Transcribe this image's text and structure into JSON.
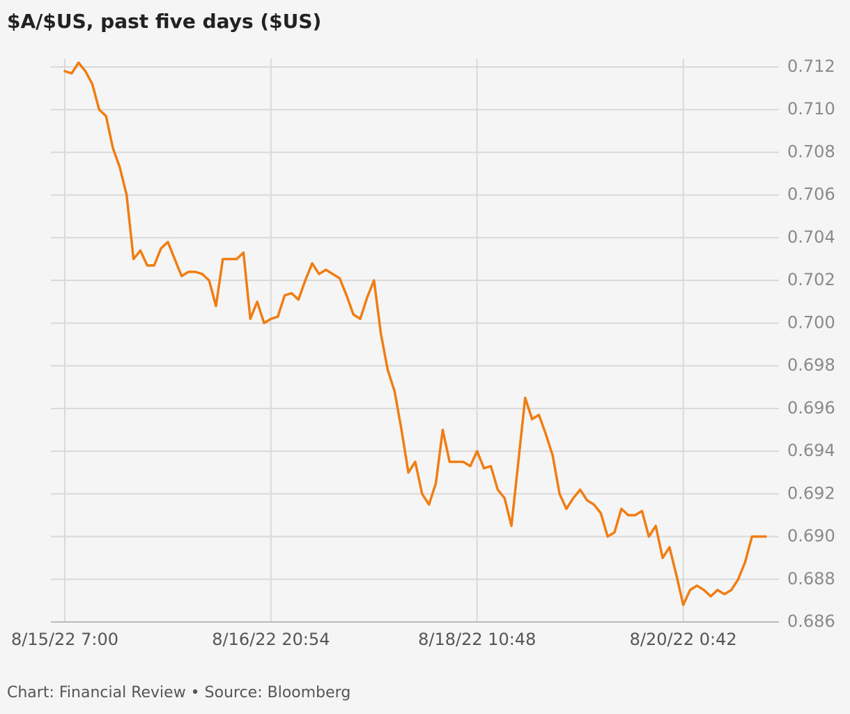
{
  "chart_data": {
    "type": "line",
    "title": "$A/$US, past five days ($US)",
    "source": "Chart: Financial Review • Source: Bloomberg",
    "categories": [
      "8/15/22 7:00",
      null,
      null,
      null,
      null,
      null,
      null,
      null,
      null,
      null,
      null,
      null,
      null,
      null,
      null,
      null,
      null,
      null,
      null,
      null,
      null,
      null,
      null,
      null,
      null,
      null,
      null,
      null,
      null,
      null,
      "8/16/22 20:54",
      null,
      null,
      null,
      null,
      null,
      null,
      null,
      null,
      null,
      null,
      null,
      null,
      null,
      null,
      null,
      null,
      null,
      null,
      null,
      null,
      null,
      null,
      null,
      null,
      null,
      null,
      null,
      null,
      null,
      "8/18/22 10:48",
      null,
      null,
      null,
      null,
      null,
      null,
      null,
      null,
      null,
      null,
      null,
      null,
      null,
      null,
      null,
      null,
      null,
      null,
      null,
      null,
      null,
      null,
      null,
      null,
      null,
      null,
      null,
      null,
      null,
      "8/20/22 0:42",
      null,
      null,
      null,
      null,
      null,
      null,
      null,
      null,
      null,
      null,
      null,
      null
    ],
    "series": [
      {
        "name": "$A/$US",
        "color": "#f07d12",
        "values": [
          0.7118,
          0.7117,
          0.7122,
          0.7118,
          0.7112,
          0.71,
          0.7097,
          0.7082,
          0.7073,
          0.706,
          0.703,
          0.7034,
          0.7027,
          0.7027,
          0.7035,
          0.7038,
          0.703,
          0.7022,
          0.7024,
          0.7024,
          0.7023,
          0.702,
          0.7008,
          0.703,
          0.703,
          0.703,
          0.7033,
          0.7002,
          0.701,
          0.7,
          0.7002,
          0.7003,
          0.7013,
          0.7014,
          0.7011,
          0.702,
          0.7028,
          0.7023,
          0.7025,
          0.7023,
          0.7021,
          0.7013,
          0.7004,
          0.7002,
          0.7012,
          0.702,
          0.6995,
          0.6978,
          0.6968,
          0.695,
          0.693,
          0.6935,
          0.692,
          0.6915,
          0.6925,
          0.695,
          0.6935,
          0.6935,
          0.6935,
          0.6933,
          0.694,
          0.6932,
          0.6933,
          0.6922,
          0.6918,
          0.6905,
          0.6935,
          0.6965,
          0.6955,
          0.6957,
          0.6948,
          0.6938,
          0.692,
          0.6913,
          0.6918,
          0.6922,
          0.6917,
          0.6915,
          0.6911,
          0.69,
          0.6902,
          0.6913,
          0.691,
          0.691,
          0.6912,
          0.69,
          0.6905,
          0.689,
          0.6895,
          0.6882,
          0.6868,
          0.6875,
          0.6877,
          0.6875,
          0.6872,
          0.6875,
          0.6873,
          0.6875,
          0.688,
          0.6888,
          0.69,
          0.69,
          0.69
        ]
      }
    ],
    "ylim": [
      0.686,
      0.712
    ],
    "yticks": [
      0.686,
      0.688,
      {
        "value": 0.69,
        "label": "0.690"
      },
      0.692,
      0.694,
      0.696,
      0.698,
      {
        "value": 0.7,
        "label": "0.700"
      },
      0.702,
      0.704,
      0.706,
      0.708,
      {
        "value": 0.71,
        "label": "0.710"
      },
      0.712
    ],
    "grid": true
  }
}
